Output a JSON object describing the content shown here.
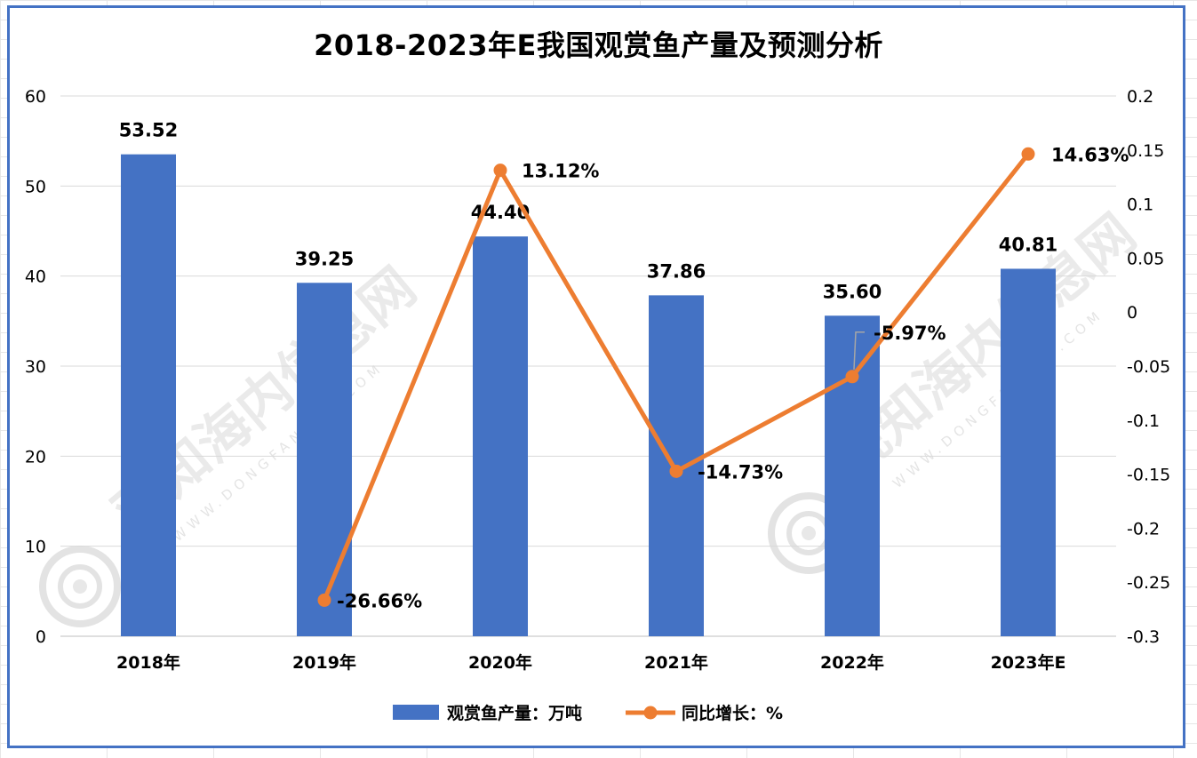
{
  "chart_data": {
    "type": "bar",
    "title": "2018-2023年E我国观赏鱼产量及预测分析",
    "categories": [
      "2018年",
      "2019年",
      "2020年",
      "2021年",
      "2022年",
      "2023年E"
    ],
    "series": [
      {
        "name": "观赏鱼产量：万吨",
        "type": "bar",
        "axis": "left",
        "color": "#4472c4",
        "values": [
          53.52,
          39.25,
          44.4,
          37.86,
          35.6,
          40.81
        ],
        "labels": [
          "53.52",
          "39.25",
          "44.40",
          "37.86",
          "35.60",
          "40.81"
        ]
      },
      {
        "name": "同比增长：%",
        "type": "line",
        "axis": "right",
        "color": "#ed7d31",
        "values": [
          null,
          -0.2666,
          0.1312,
          -0.1473,
          -0.0597,
          0.1463
        ],
        "labels": [
          "",
          "-26.66%",
          "13.12%",
          "-14.73%",
          "-5.97%",
          "14.63%"
        ]
      }
    ],
    "left_axis": {
      "ylim": [
        0,
        60
      ],
      "ticks": [
        0,
        10,
        20,
        30,
        40,
        50,
        60
      ],
      "tick_labels": [
        "0",
        "10",
        "20",
        "30",
        "40",
        "50",
        "60"
      ]
    },
    "right_axis": {
      "ylim": [
        -0.3,
        0.2
      ],
      "ticks": [
        -0.3,
        -0.25,
        -0.2,
        -0.15,
        -0.1,
        -0.05,
        0,
        0.05,
        0.1,
        0.15,
        0.2
      ],
      "tick_labels": [
        "-0.3",
        "-0.25",
        "-0.2",
        "-0.15",
        "-0.1",
        "-0.05",
        "0",
        "0.05",
        "0.1",
        "0.15",
        "0.2"
      ]
    },
    "grid": true,
    "legend": "bottom"
  },
  "watermark": {
    "text": "观知海内信息网",
    "sub": "WWW.DONGFANGQB.COM"
  }
}
